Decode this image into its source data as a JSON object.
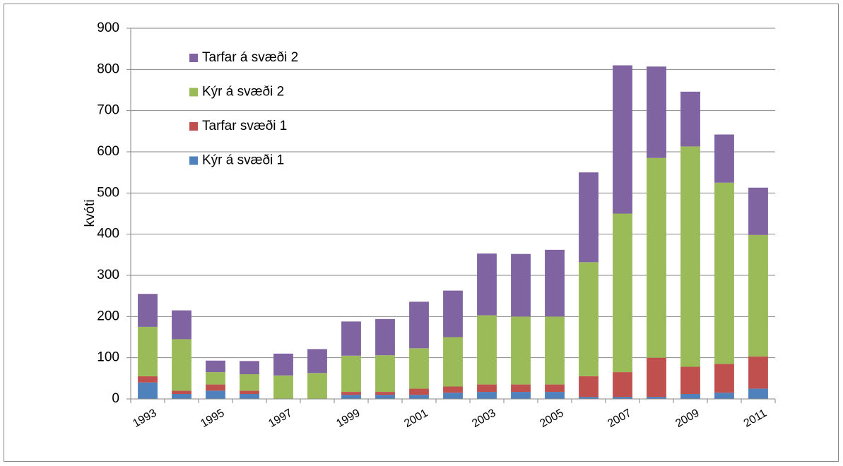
{
  "chart_data": {
    "type": "stacked_bar",
    "y_label": "kvóti",
    "categories": [
      "1993",
      null,
      "1995",
      null,
      "1997",
      null,
      "1999",
      null,
      "2001",
      null,
      "2003",
      null,
      "2005",
      null,
      "2007",
      null,
      "2009",
      null,
      "2011"
    ],
    "series": [
      {
        "name": "Kýr á svæði 1",
        "color": "#4f81bd",
        "values": [
          40,
          12,
          20,
          12,
          0,
          0,
          10,
          10,
          10,
          15,
          17,
          17,
          17,
          5,
          5,
          5,
          12,
          15,
          25
        ]
      },
      {
        "name": "Tarfar svæði 1",
        "color": "#c0504d",
        "values": [
          15,
          8,
          15,
          8,
          0,
          0,
          7,
          7,
          15,
          15,
          18,
          18,
          18,
          50,
          60,
          95,
          66,
          70,
          78
        ]
      },
      {
        "name": "Kýr á svæði 2",
        "color": "#9bbb59",
        "values": [
          120,
          125,
          30,
          40,
          57,
          63,
          88,
          89,
          98,
          120,
          168,
          165,
          165,
          277,
          385,
          485,
          535,
          440,
          295
        ]
      },
      {
        "name": "Tarfar á svæði 2",
        "color": "#8064a2",
        "values": [
          80,
          70,
          28,
          32,
          53,
          58,
          83,
          88,
          113,
          113,
          150,
          152,
          162,
          218,
          360,
          222,
          133,
          117,
          115
        ]
      }
    ],
    "ylim": [
      0,
      900
    ],
    "yticks": [
      0,
      100,
      200,
      300,
      400,
      500,
      600,
      700,
      800,
      900
    ],
    "grid": true,
    "legend": "upper left"
  }
}
